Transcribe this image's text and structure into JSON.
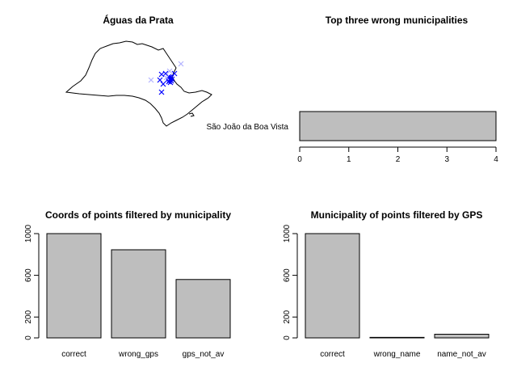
{
  "chart_data": [
    {
      "type": "scatter",
      "title": "Águas da Prata",
      "map_region": "São Paulo state outline",
      "colors": {
        "outline": "#000000",
        "correct_points": "#0000ff",
        "other_points": "#b3b3ff"
      }
    },
    {
      "type": "bar",
      "orientation": "horizontal",
      "title": "Top three wrong municipalities",
      "categories": [
        "São João da Boa Vista"
      ],
      "values": [
        4
      ],
      "xlim": [
        0,
        4
      ],
      "xticks": [
        "0",
        "1",
        "2",
        "3",
        "4"
      ]
    },
    {
      "type": "bar",
      "title": "Coords of points filtered by municipality",
      "categories": [
        "correct",
        "wrong_gps",
        "gps_not_av"
      ],
      "values": [
        1000,
        845,
        560
      ],
      "ylim": [
        0,
        1000
      ],
      "yticks": [
        "0",
        "200",
        "600",
        "1000"
      ]
    },
    {
      "type": "bar",
      "title": "Municipality of points filtered by GPS",
      "categories": [
        "correct",
        "wrong_name",
        "name_not_av"
      ],
      "values": [
        1000,
        5,
        35
      ],
      "ylim": [
        0,
        1000
      ],
      "yticks": [
        "0",
        "200",
        "600",
        "1000"
      ]
    }
  ]
}
